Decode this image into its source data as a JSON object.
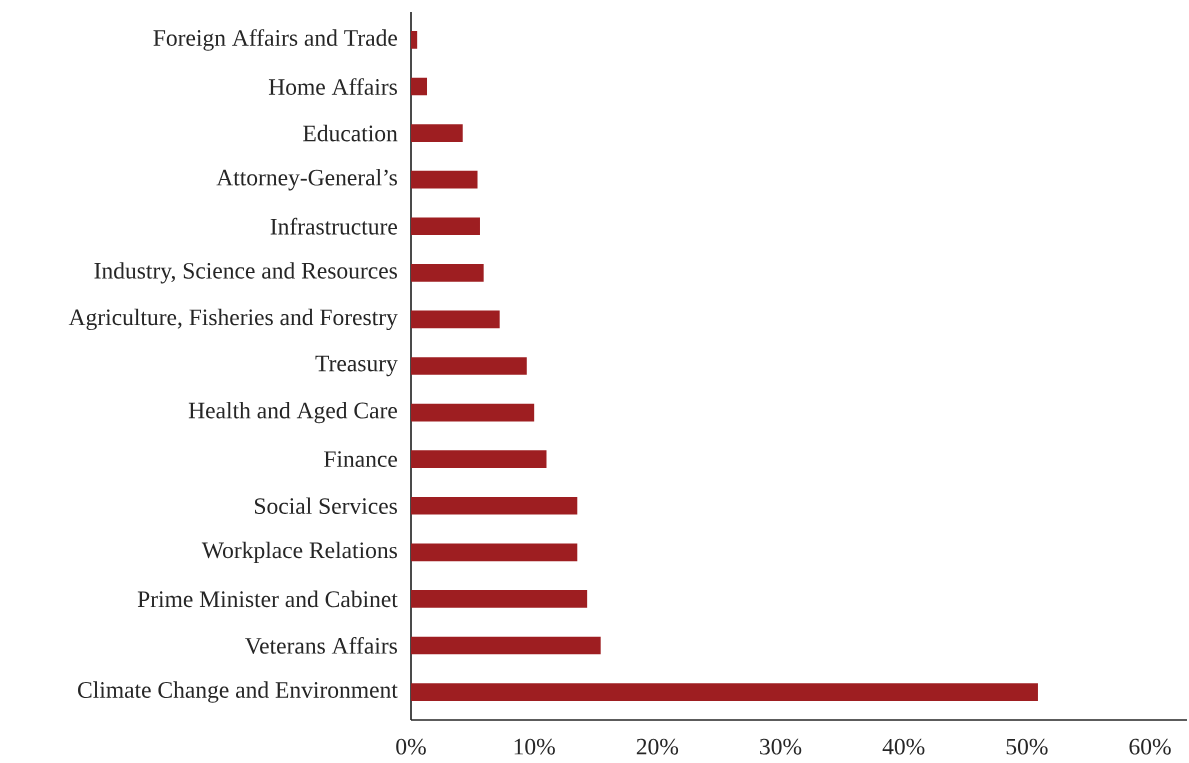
{
  "chart_data": {
    "type": "bar",
    "orientation": "horizontal",
    "categories": [
      "Foreign Affairs and Trade",
      "Home Affairs",
      "Education",
      "Attorney-General’s",
      "Infrastructure",
      "Industry, Science and Resources",
      "Agriculture, Fisheries and Forestry",
      "Treasury",
      "Health and Aged Care",
      "Finance",
      "Social Services",
      "Workplace Relations",
      "Prime Minister and Cabinet",
      "Veterans Affairs",
      "Climate Change and Environment"
    ],
    "values": [
      0.5,
      1.3,
      4.2,
      5.4,
      5.6,
      5.9,
      7.2,
      9.4,
      10.0,
      11.0,
      13.5,
      13.5,
      14.3,
      15.4,
      50.9
    ],
    "color": "#9e1e21",
    "xlim": [
      0,
      63
    ],
    "xticks": [
      {
        "value": 0,
        "label": "0%"
      },
      {
        "value": 10,
        "label": "10%"
      },
      {
        "value": 20,
        "label": "20%"
      },
      {
        "value": 30,
        "label": "30%"
      },
      {
        "value": 40,
        "label": "40%"
      },
      {
        "value": 50,
        "label": "50%"
      },
      {
        "value": 60,
        "label": "60%"
      }
    ],
    "grid": false
  }
}
